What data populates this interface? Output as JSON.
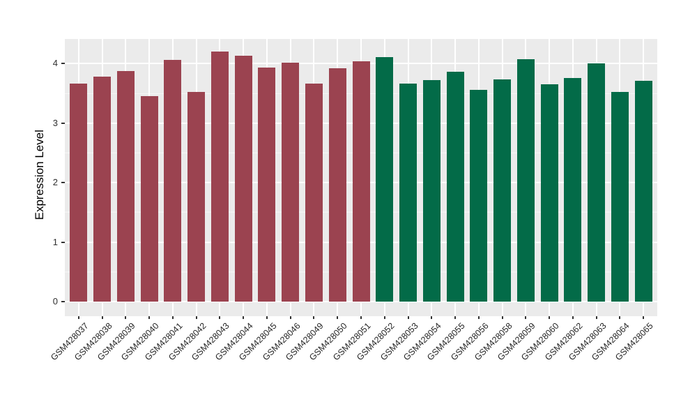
{
  "chart_data": {
    "type": "bar",
    "title": "",
    "xlabel": "",
    "ylabel": "Expression Level",
    "categories": [
      "GSM428037",
      "GSM428038",
      "GSM428039",
      "GSM428040",
      "GSM428041",
      "GSM428042",
      "GSM428043",
      "GSM428044",
      "GSM428045",
      "GSM428046",
      "GSM428049",
      "GSM428050",
      "GSM428051",
      "GSM428052",
      "GSM428053",
      "GSM428054",
      "GSM428055",
      "GSM428056",
      "GSM428058",
      "GSM428059",
      "GSM428060",
      "GSM428062",
      "GSM428063",
      "GSM428064",
      "GSM428065"
    ],
    "values": [
      3.67,
      3.78,
      3.88,
      3.46,
      4.06,
      3.53,
      4.2,
      4.13,
      3.93,
      4.02,
      3.66,
      3.92,
      4.04,
      4.11,
      3.67,
      3.72,
      3.87,
      3.56,
      3.73,
      4.08,
      3.65,
      3.76,
      4.0,
      3.52,
      3.71
    ],
    "groups": [
      "group1",
      "group1",
      "group1",
      "group1",
      "group1",
      "group1",
      "group1",
      "group1",
      "group1",
      "group1",
      "group1",
      "group1",
      "group1",
      "group2",
      "group2",
      "group2",
      "group2",
      "group2",
      "group2",
      "group2",
      "group2",
      "group2",
      "group2",
      "group2",
      "group2"
    ],
    "group_colors": {
      "group1": "#9B4350",
      "group2": "#036B48"
    },
    "y_ticks": [
      "0",
      "1",
      "2",
      "3",
      "4"
    ],
    "ylim": [
      0,
      4.41
    ],
    "grid": "on",
    "legend": "none",
    "panel_bg": "#EBEBEB",
    "grid_color": "#FFFFFF",
    "tick_color": "#333333"
  }
}
